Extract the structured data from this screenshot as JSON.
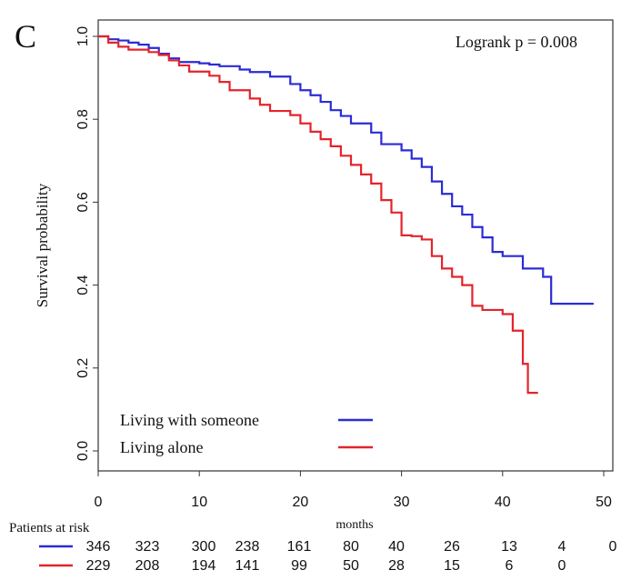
{
  "panel_label": "C",
  "chart_data": {
    "type": "line",
    "title": "",
    "xlabel": "months",
    "ylabel": "Survival probability",
    "xlim": [
      0,
      50
    ],
    "ylim": [
      0,
      1.0
    ],
    "x_ticks": [
      0,
      10,
      20,
      30,
      40,
      50
    ],
    "y_ticks": [
      "0.0",
      "0.2",
      "0.4",
      "0.6",
      "0.8",
      "1.0"
    ],
    "annotation": "Logrank p = 0.008",
    "legend_position": "bottom-left",
    "grid": false,
    "series": [
      {
        "name": "Living with someone",
        "color": "#2b2bd6",
        "steps": [
          [
            0,
            1.0
          ],
          [
            1,
            0.993
          ],
          [
            2,
            0.99
          ],
          [
            3,
            0.985
          ],
          [
            4,
            0.98
          ],
          [
            5,
            0.972
          ],
          [
            6,
            0.958
          ],
          [
            7,
            0.947
          ],
          [
            8,
            0.938
          ],
          [
            10,
            0.935
          ],
          [
            11,
            0.932
          ],
          [
            12,
            0.928
          ],
          [
            14,
            0.92
          ],
          [
            15,
            0.914
          ],
          [
            17,
            0.903
          ],
          [
            19,
            0.885
          ],
          [
            20,
            0.87
          ],
          [
            21,
            0.858
          ],
          [
            22,
            0.842
          ],
          [
            23,
            0.822
          ],
          [
            24,
            0.808
          ],
          [
            25,
            0.79
          ],
          [
            27,
            0.768
          ],
          [
            28,
            0.74
          ],
          [
            30,
            0.725
          ],
          [
            31,
            0.705
          ],
          [
            32,
            0.685
          ],
          [
            33,
            0.65
          ],
          [
            34,
            0.62
          ],
          [
            35,
            0.59
          ],
          [
            36,
            0.57
          ],
          [
            37,
            0.54
          ],
          [
            38,
            0.515
          ],
          [
            39,
            0.48
          ],
          [
            40,
            0.47
          ],
          [
            42,
            0.44
          ],
          [
            44,
            0.42
          ],
          [
            44.8,
            0.355
          ],
          [
            49,
            0.355
          ]
        ]
      },
      {
        "name": "Living alone",
        "color": "#e3242b",
        "steps": [
          [
            0,
            1.0
          ],
          [
            1,
            0.985
          ],
          [
            2,
            0.975
          ],
          [
            3,
            0.968
          ],
          [
            5,
            0.962
          ],
          [
            6,
            0.955
          ],
          [
            7,
            0.942
          ],
          [
            8,
            0.93
          ],
          [
            9,
            0.915
          ],
          [
            11,
            0.905
          ],
          [
            12,
            0.89
          ],
          [
            13,
            0.87
          ],
          [
            15,
            0.85
          ],
          [
            16,
            0.835
          ],
          [
            17,
            0.82
          ],
          [
            19,
            0.81
          ],
          [
            20,
            0.79
          ],
          [
            21,
            0.77
          ],
          [
            22,
            0.752
          ],
          [
            23,
            0.735
          ],
          [
            24,
            0.712
          ],
          [
            25,
            0.69
          ],
          [
            26,
            0.667
          ],
          [
            27,
            0.645
          ],
          [
            28,
            0.605
          ],
          [
            29,
            0.575
          ],
          [
            30,
            0.52
          ],
          [
            31,
            0.518
          ],
          [
            32,
            0.51
          ],
          [
            33,
            0.47
          ],
          [
            34,
            0.44
          ],
          [
            35,
            0.42
          ],
          [
            36,
            0.4
          ],
          [
            37,
            0.35
          ],
          [
            38,
            0.34
          ],
          [
            40,
            0.33
          ],
          [
            41,
            0.29
          ],
          [
            42,
            0.21
          ],
          [
            42.5,
            0.14
          ],
          [
            43.5,
            0.14
          ]
        ]
      }
    ],
    "risk_table": {
      "label": "Patients at risk",
      "rows": [
        {
          "color": "#2b2bd6",
          "values": [
            "346",
            "323",
            "300",
            "238",
            "161",
            "80",
            "40",
            "26",
            "13",
            "4",
            "0"
          ]
        },
        {
          "color": "#e3242b",
          "values": [
            "229",
            "208",
            "194",
            "141",
            "99",
            "50",
            "28",
            "15",
            "6",
            "0",
            ""
          ]
        }
      ]
    }
  }
}
